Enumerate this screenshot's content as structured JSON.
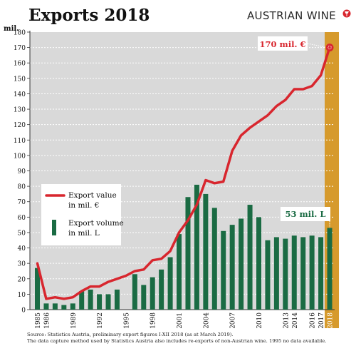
{
  "header": {
    "title": "Exports 2018",
    "brand": "AUSTRIAN WINE"
  },
  "chart_data": {
    "type": "bar",
    "y_unit_label": "mil.",
    "ylim": [
      0,
      180
    ],
    "yticks": [
      0,
      10,
      20,
      30,
      40,
      50,
      60,
      70,
      80,
      90,
      100,
      110,
      120,
      130,
      140,
      150,
      160,
      170,
      180
    ],
    "xtick_labels": [
      "1985",
      "1986",
      "1989",
      "1992",
      "1995",
      "1998",
      "2001",
      "2004",
      "2007",
      "2010",
      "2013",
      "2014",
      "2016",
      "2017",
      "2018"
    ],
    "years": [
      1985,
      1986,
      1987,
      1988,
      1989,
      1990,
      1991,
      1992,
      1993,
      1994,
      1995,
      1996,
      1997,
      1998,
      1999,
      2000,
      2001,
      2002,
      2003,
      2004,
      2005,
      2006,
      2007,
      2008,
      2009,
      2010,
      2011,
      2012,
      2013,
      2014,
      2015,
      2016,
      2017,
      2018
    ],
    "series": [
      {
        "name": "Export value in mil. €",
        "type": "line",
        "color": "#d8262e",
        "values": [
          30,
          7,
          8,
          7,
          8,
          12,
          15,
          15,
          18,
          20,
          22,
          25,
          26,
          32,
          33,
          38,
          50,
          58,
          68,
          84,
          82,
          83,
          103,
          113,
          118,
          122,
          126,
          132,
          136,
          143,
          143,
          145,
          152,
          170
        ]
      },
      {
        "name": "Export volume in mil. L",
        "type": "bar",
        "color": "#1a6b43",
        "values": [
          27,
          4,
          4,
          3,
          4,
          12,
          13,
          10,
          10,
          13,
          null,
          23,
          16,
          21,
          26,
          34,
          49,
          73,
          81,
          75,
          66,
          51,
          55,
          59,
          68,
          60,
          45,
          47,
          46,
          48,
          47,
          48,
          47,
          53
        ]
      }
    ],
    "legend": {
      "value_line1": "Export value",
      "value_line2": "in mil. €",
      "volume_line1": "Export volume",
      "volume_line2": "in mil. L",
      "placement": "left"
    },
    "annotations": {
      "value_2018": "170 mil. €",
      "volume_2018": "53 mil. L"
    },
    "highlight_year": "2018",
    "colors": {
      "plot_background": "#d9d9d9",
      "highlight": "#d69a2c",
      "grid": "#ffffff"
    }
  },
  "footnote": {
    "line1": "Source: Statistics Austria, preliminary export figures I-XII 2018 (as at March 2019).",
    "line2": "The data capture method used by Statistics Austria also includes re-exports of non-Austrian wine. 1995 no data available."
  }
}
